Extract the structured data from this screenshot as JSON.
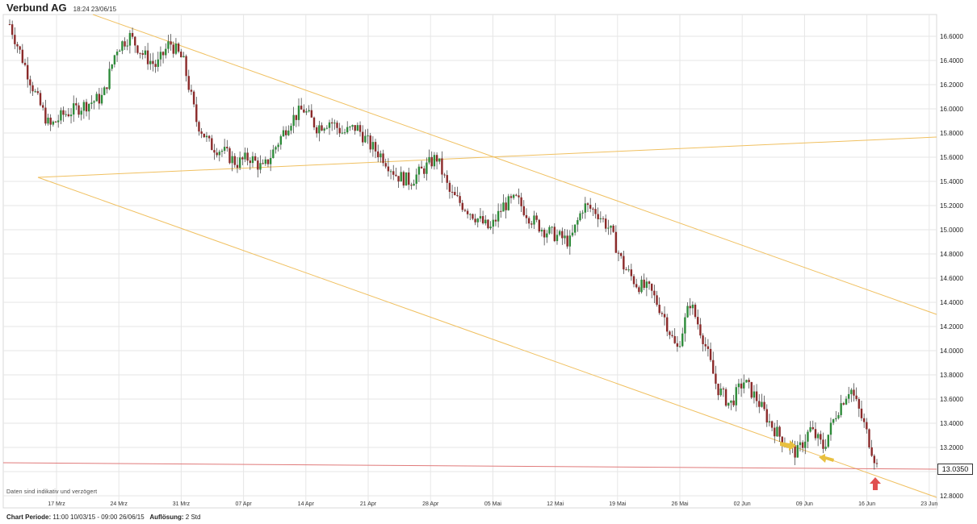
{
  "header": {
    "title": "Verbund AG",
    "timestamp": "18:24 23/06/15"
  },
  "footer": {
    "period_label": "Chart Periode:",
    "period_value": "11:00 10/03/15 - 09:00 26/06/15",
    "resolution_label": "Auflösung:",
    "resolution_value": "2 Std"
  },
  "disclaimer": "Daten sind indikativ und verzögert",
  "current_price": "13.0350",
  "colors": {
    "up": "#2e8b3a",
    "down": "#8b2a2a",
    "grid": "#e6e6e6",
    "trendline": "#f0c060",
    "support": "#e07a7a",
    "marker_arrow": "#e8c040",
    "red_arrow": "#e05050"
  },
  "chart_data": {
    "type": "candlestick",
    "title": "Verbund AG",
    "ylim": [
      12.8,
      16.75
    ],
    "y_ticks": [
      "16.6000",
      "16.4000",
      "16.2000",
      "16.0000",
      "15.8000",
      "15.6000",
      "15.4000",
      "15.2000",
      "15.0000",
      "14.8000",
      "14.6000",
      "14.4000",
      "14.2000",
      "14.0000",
      "13.8000",
      "13.6000",
      "13.4000",
      "13.2000",
      "13.0000",
      "12.8000"
    ],
    "x_ticks": [
      "17 Mrz",
      "24 Mrz",
      "31 Mrz",
      "07 Apr",
      "14 Apr",
      "21 Apr",
      "28 Apr",
      "05 Mai",
      "12 Mai",
      "19 Mai",
      "26 Mai",
      "02 Jun",
      "09 Jun",
      "16 Jun",
      "23 Jun"
    ],
    "close_path": [
      16.7,
      16.4,
      16.1,
      15.85,
      15.95,
      16.0,
      16.05,
      16.1,
      16.5,
      16.6,
      16.45,
      16.35,
      16.55,
      16.4,
      15.9,
      15.7,
      15.65,
      15.55,
      15.6,
      15.5,
      15.7,
      15.9,
      16.0,
      15.85,
      15.9,
      15.8,
      15.85,
      15.7,
      15.6,
      15.45,
      15.4,
      15.5,
      15.6,
      15.3,
      15.2,
      15.1,
      15.0,
      15.2,
      15.25,
      15.1,
      15.0,
      14.95,
      14.9,
      15.2,
      15.15,
      15.0,
      14.7,
      14.55,
      14.5,
      14.3,
      14.0,
      14.4,
      14.1,
      13.7,
      13.55,
      13.75,
      13.6,
      13.4,
      13.25,
      13.15,
      13.35,
      13.2,
      13.5,
      13.7,
      13.4,
      13.05
    ],
    "support_line": {
      "from": 13.05,
      "to": 13.015
    },
    "annotations": [
      {
        "type": "arrow",
        "color": "yellow",
        "pointing": "right"
      },
      {
        "type": "arrow",
        "color": "yellow",
        "pointing": "left"
      },
      {
        "type": "arrow",
        "color": "red",
        "pointing": "up"
      }
    ],
    "current_value": 13.035
  }
}
